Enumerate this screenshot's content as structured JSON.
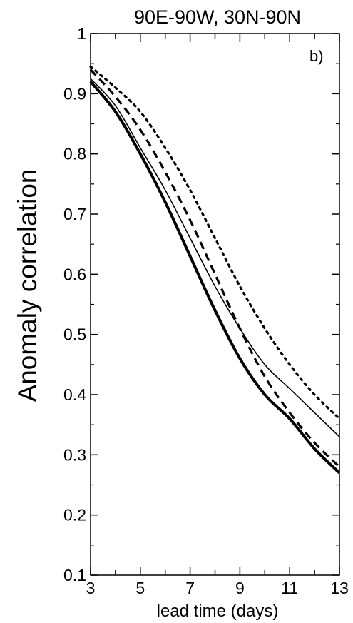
{
  "chart_data": {
    "type": "line",
    "title": "90E-90W, 30N-90N",
    "panel_label": "b)",
    "xlabel": "lead time (days)",
    "ylabel": "Anomaly correlation",
    "xlim": [
      3,
      13
    ],
    "ylim": [
      0.1,
      1
    ],
    "x_ticks": [
      3,
      5,
      7,
      9,
      11,
      13
    ],
    "x_tick_labels": [
      "3",
      "5",
      "7",
      "9",
      "11",
      "13"
    ],
    "y_ticks": [
      0.1,
      0.2,
      0.3,
      0.4,
      0.5,
      0.6,
      0.7,
      0.8,
      0.9,
      1
    ],
    "y_tick_labels": [
      "0.1",
      "0.2",
      "0.3",
      "0.4",
      "0.5",
      "0.6",
      "0.7",
      "0.8",
      "0.9",
      "1"
    ],
    "grid": false,
    "legend": "none",
    "x": [
      3,
      4,
      5,
      6,
      7,
      8,
      9,
      10,
      11,
      12,
      13
    ],
    "series": [
      {
        "style": "solid-thick",
        "values": [
          0.92,
          0.87,
          0.8,
          0.72,
          0.63,
          0.54,
          0.46,
          0.4,
          0.36,
          0.31,
          0.27
        ]
      },
      {
        "style": "solid-thin",
        "values": [
          0.925,
          0.88,
          0.81,
          0.74,
          0.66,
          0.58,
          0.51,
          0.45,
          0.41,
          0.37,
          0.33
        ]
      },
      {
        "style": "dashed",
        "values": [
          0.94,
          0.895,
          0.84,
          0.77,
          0.69,
          0.6,
          0.51,
          0.43,
          0.37,
          0.32,
          0.28
        ]
      },
      {
        "style": "dotted",
        "values": [
          0.945,
          0.91,
          0.87,
          0.81,
          0.74,
          0.66,
          0.58,
          0.51,
          0.45,
          0.4,
          0.36
        ]
      }
    ]
  }
}
